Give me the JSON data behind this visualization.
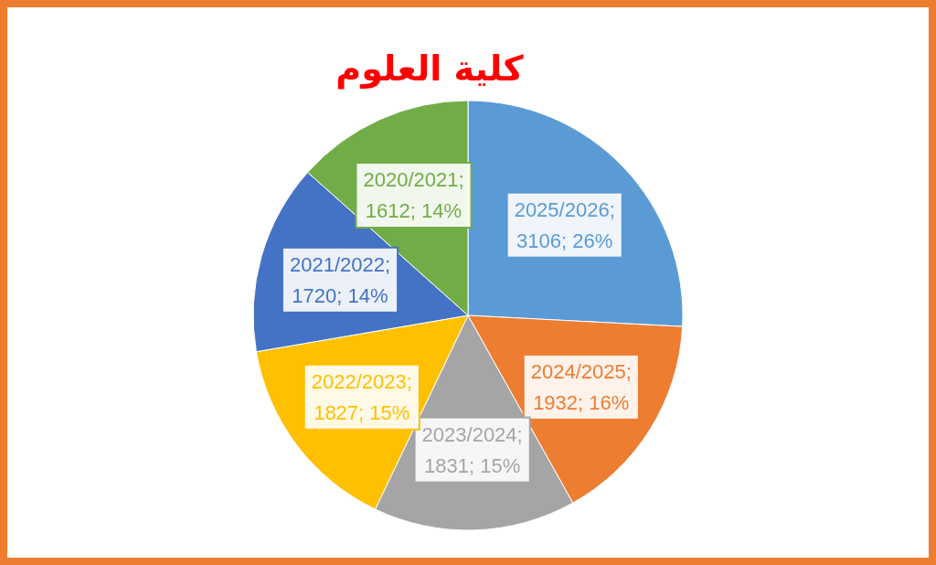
{
  "chart_data": {
    "type": "pie",
    "title": "كلية العلوم",
    "categories": [
      "2025/2026",
      "2024/2025",
      "2023/2024",
      "2022/2023",
      "2021/2022",
      "2020/2021"
    ],
    "values": [
      3106,
      1932,
      1831,
      1827,
      1720,
      1612
    ],
    "colors": [
      "#5b9bd5",
      "#ed7d31",
      "#a5a5a5",
      "#ffc000",
      "#4472c4",
      "#70ad47"
    ],
    "value_labels": [
      "; 3106; 26%",
      "; 1932; 16%",
      "; 1831; 15%",
      "; 1827; 15%",
      "; 1720; 14%",
      "; 1612; 14%"
    ]
  }
}
